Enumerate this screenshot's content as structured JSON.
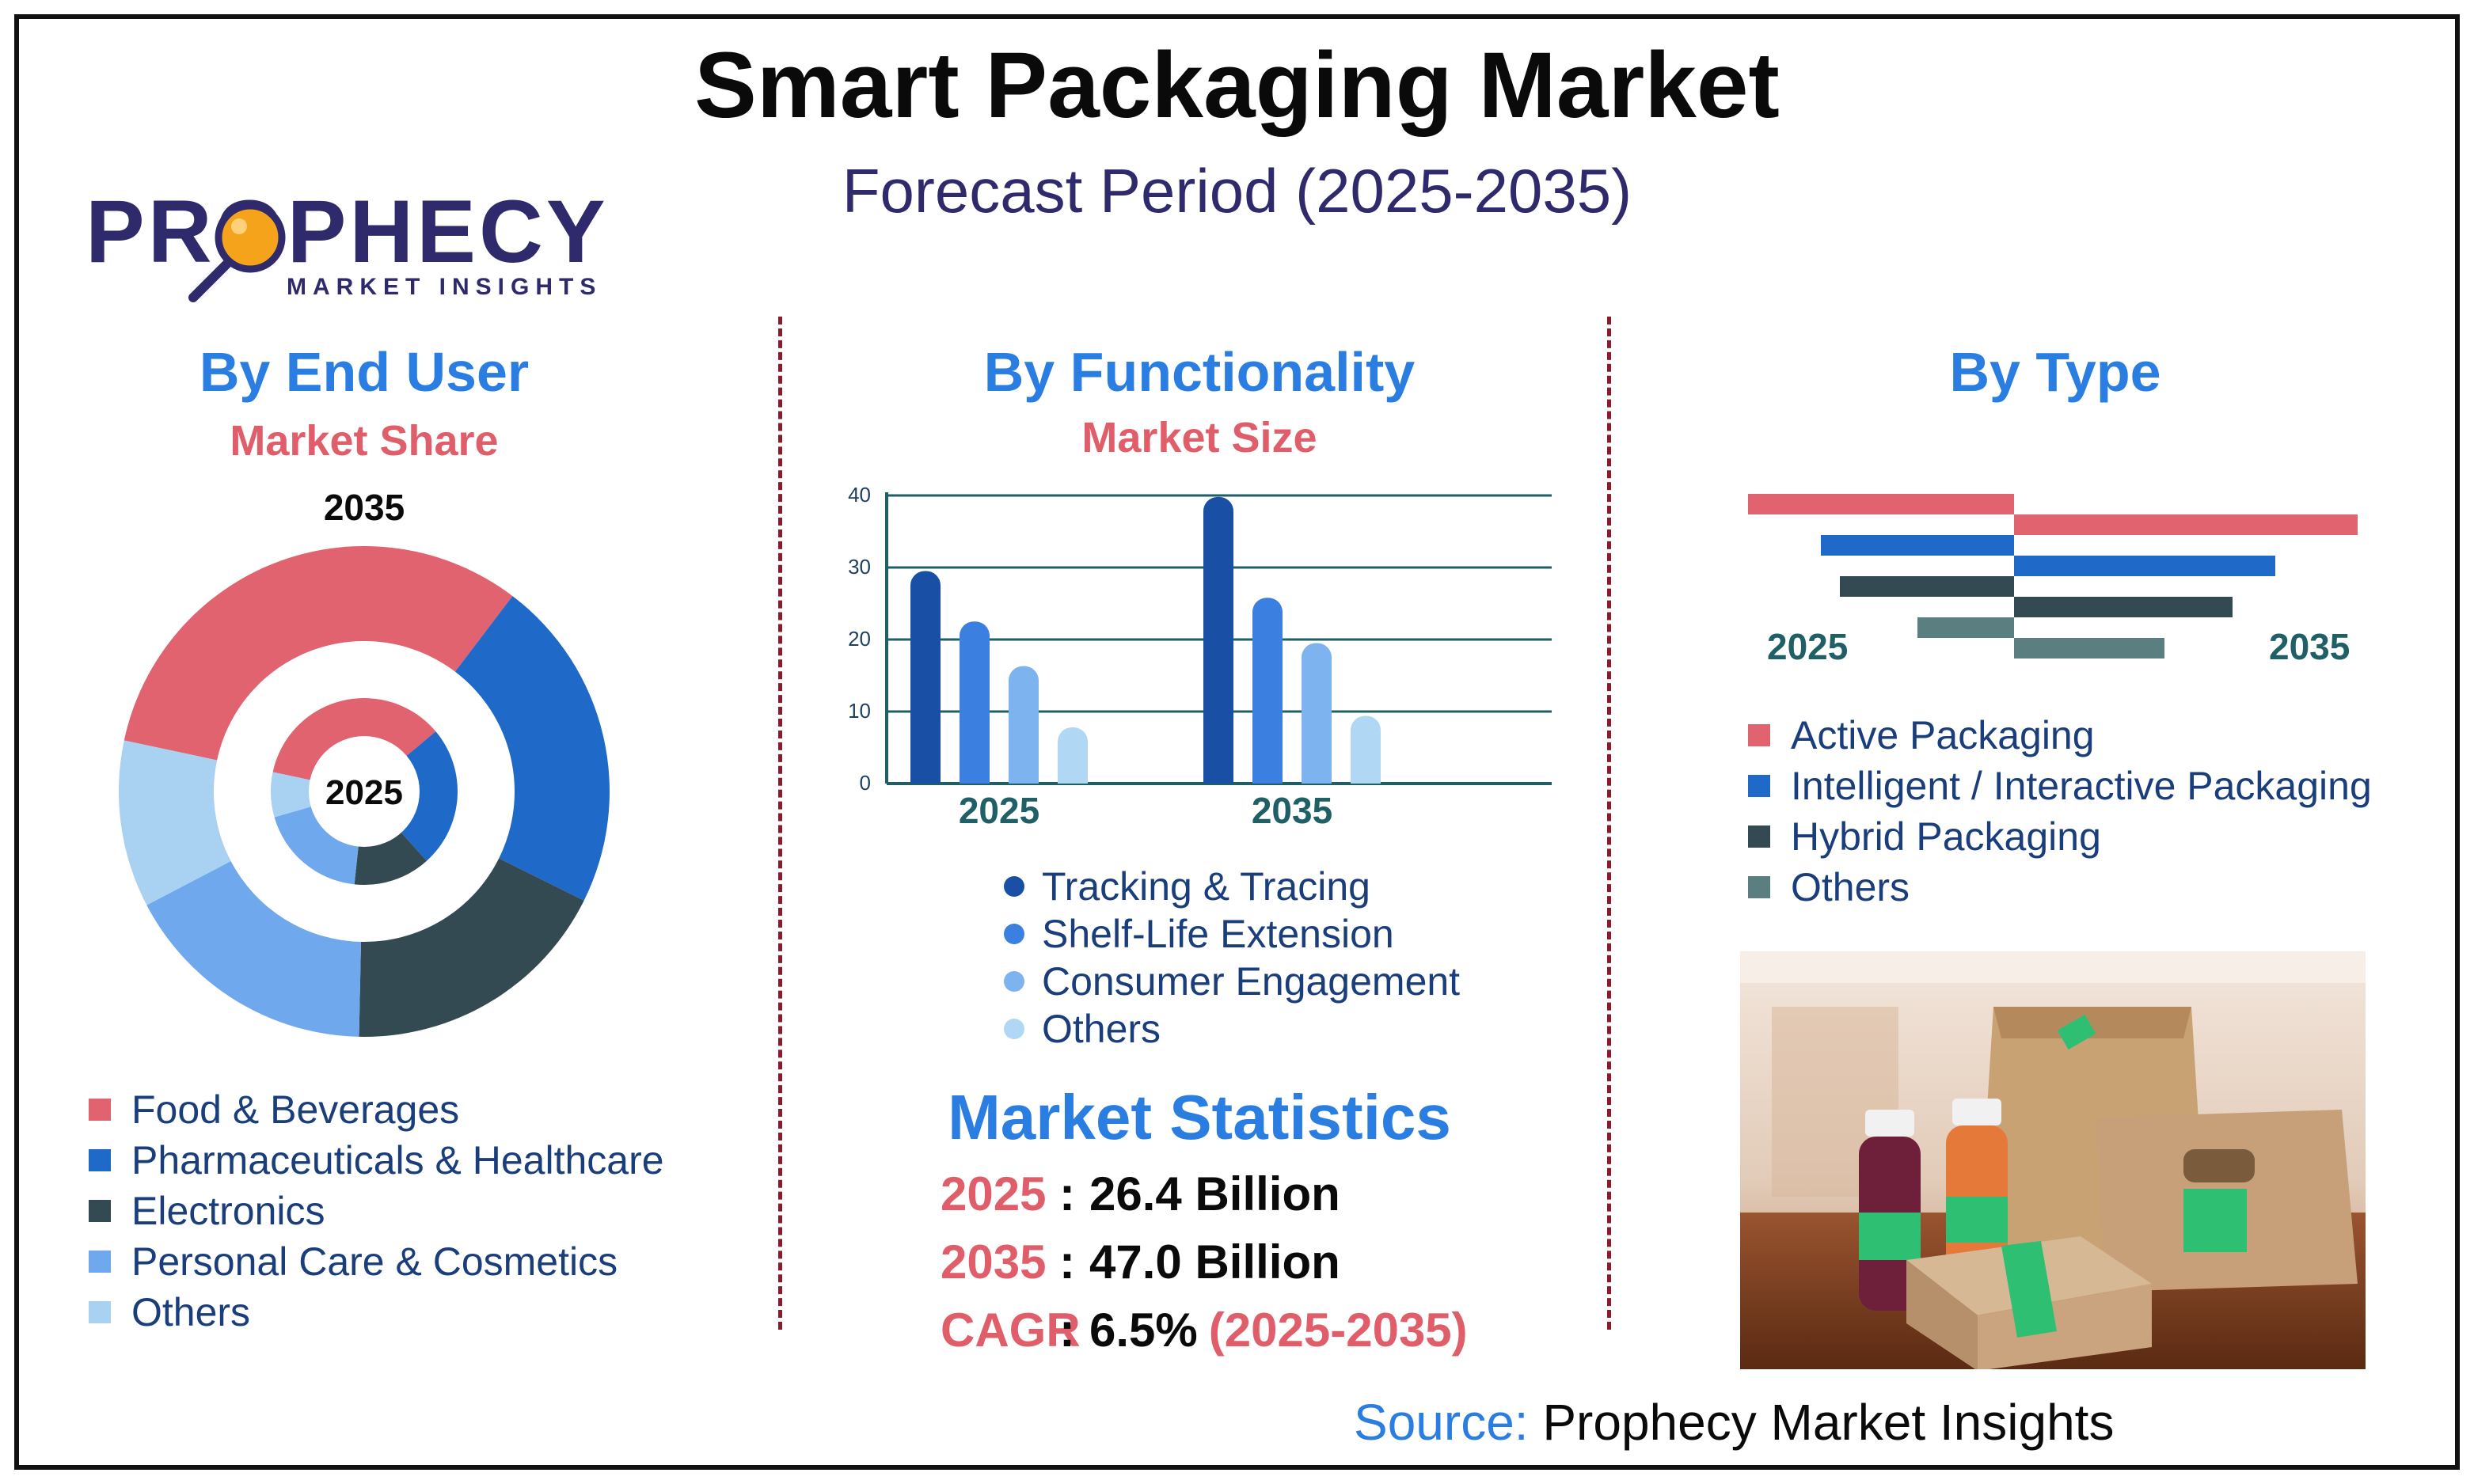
{
  "header": {
    "title": "Smart Packaging Market",
    "subtitle": "Forecast Period (2025-2035)"
  },
  "logo": {
    "brand": "PROPHECY",
    "tagline": "MARKET INSIGHTS"
  },
  "end_user": {
    "title": "By End User",
    "subtitle": "Market Share",
    "outer_label": "2035",
    "inner_label": "2025"
  },
  "functionality": {
    "title": "By Functionality",
    "subtitle": "Market Size"
  },
  "type_section": {
    "title": "By Type",
    "left_label": "2025",
    "right_label": "2035"
  },
  "statistics": {
    "title": "Market Statistics",
    "rows": [
      {
        "key": "2025",
        "colon": ":",
        "value": "26.4 Billion",
        "extra": ""
      },
      {
        "key": "2035",
        "colon": ":",
        "value": "47.0 Billion",
        "extra": ""
      },
      {
        "key": "CAGR",
        "colon": ":",
        "value": "6.5%",
        "extra": "(2025-2035)"
      }
    ]
  },
  "source": {
    "label": "Source:",
    "value": "Prophecy Market Insights"
  },
  "colors": {
    "food": "#e0636f",
    "pharma": "#1f6ac8",
    "electronics": "#334a52",
    "personal": "#6fa8ec",
    "others_light": "#a9d2f2",
    "tracking": "#1a4fa6",
    "shelf": "#3b7fe0",
    "consumer": "#7db3ee",
    "func_others": "#b0d8f4",
    "active": "#e0636f",
    "intelligent": "#1f6ac8",
    "hybrid": "#334a52",
    "type_others": "#5b7f80"
  },
  "chart_data": [
    {
      "type": "pie",
      "title": "By End User",
      "subtitle": "Market Share",
      "categories": [
        "Food & Beverages",
        "Pharmaceuticals & Healthcare",
        "Electronics",
        "Personal Care & Cosmetics",
        "Others"
      ],
      "series": [
        {
          "name": "2035",
          "values": [
            32,
            22,
            18,
            17,
            11
          ]
        },
        {
          "name": "2025",
          "values": [
            32,
            22,
            12,
            17,
            7
          ]
        }
      ],
      "legend_position": "bottom-left"
    },
    {
      "type": "bar",
      "title": "By Functionality",
      "subtitle": "Market Size",
      "categories": [
        "2025",
        "2035"
      ],
      "series": [
        {
          "name": "Tracking & Tracing",
          "values": [
            29.5,
            39.8
          ]
        },
        {
          "name": "Shelf-Life Extension",
          "values": [
            22.5,
            25.8
          ]
        },
        {
          "name": "Consumer Engagement",
          "values": [
            16.3,
            19.5
          ]
        },
        {
          "name": "Others",
          "values": [
            7.8,
            9.4
          ]
        }
      ],
      "ylim": [
        0,
        40
      ],
      "yticks": [
        0,
        10,
        20,
        30,
        40
      ],
      "grid": true,
      "legend_position": "bottom"
    },
    {
      "type": "bar",
      "title": "By Type",
      "orientation": "horizontal",
      "categories": [
        "Active Packaging",
        "Intelligent / Interactive Packaging",
        "Hybrid Packaging",
        "Others"
      ],
      "series": [
        {
          "name": "2025",
          "values": [
            168,
            122,
            110,
            61
          ]
        },
        {
          "name": "2035",
          "values": [
            217,
            165,
            138,
            95
          ]
        }
      ],
      "legend_position": "bottom"
    }
  ]
}
